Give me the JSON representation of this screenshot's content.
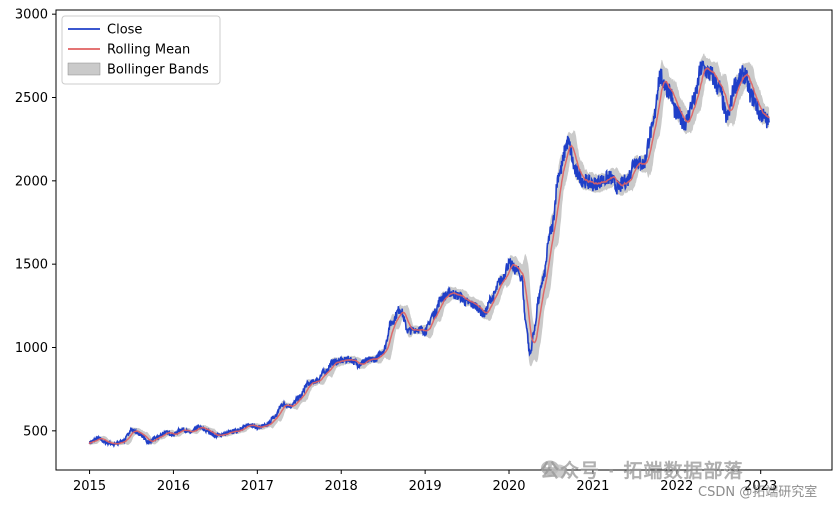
{
  "chart_data": {
    "type": "line",
    "title": "",
    "xlabel": "",
    "ylabel": "",
    "xlim": [
      2014.6,
      2023.85
    ],
    "ylim": [
      265,
      3025
    ],
    "x_ticks": [
      2015,
      2016,
      2017,
      2018,
      2019,
      2020,
      2021,
      2022,
      2023
    ],
    "x_tick_labels": [
      "2015",
      "2016",
      "2017",
      "2018",
      "2019",
      "2020",
      "2021",
      "2022",
      "2023"
    ],
    "y_ticks": [
      500,
      1000,
      1500,
      2000,
      2500,
      3000
    ],
    "y_tick_labels": [
      "500",
      "1000",
      "1500",
      "2000",
      "2500",
      "3000"
    ],
    "grid": false,
    "legend": {
      "location": "top-left",
      "entries": [
        "Close",
        "Rolling Mean",
        "Bollinger Bands"
      ]
    },
    "series": [
      {
        "name": "Close",
        "kind": "line",
        "color": "#1f3fc8"
      },
      {
        "name": "Rolling Mean",
        "kind": "line",
        "color": "#e06060"
      },
      {
        "name": "Bollinger Bands",
        "kind": "band",
        "color": "#9e9e9e"
      }
    ],
    "points": [
      [
        2015.0,
        430
      ],
      [
        2015.1,
        455
      ],
      [
        2015.2,
        430
      ],
      [
        2015.3,
        420
      ],
      [
        2015.4,
        440
      ],
      [
        2015.5,
        505
      ],
      [
        2015.6,
        480
      ],
      [
        2015.7,
        430
      ],
      [
        2015.8,
        460
      ],
      [
        2015.9,
        490
      ],
      [
        2016.0,
        480
      ],
      [
        2016.1,
        510
      ],
      [
        2016.2,
        490
      ],
      [
        2016.3,
        520
      ],
      [
        2016.4,
        500
      ],
      [
        2016.5,
        470
      ],
      [
        2016.6,
        480
      ],
      [
        2016.7,
        495
      ],
      [
        2016.8,
        510
      ],
      [
        2016.9,
        540
      ],
      [
        2017.0,
        520
      ],
      [
        2017.1,
        530
      ],
      [
        2017.2,
        580
      ],
      [
        2017.3,
        660
      ],
      [
        2017.4,
        650
      ],
      [
        2017.5,
        700
      ],
      [
        2017.6,
        780
      ],
      [
        2017.7,
        800
      ],
      [
        2017.8,
        850
      ],
      [
        2017.9,
        910
      ],
      [
        2018.0,
        920
      ],
      [
        2018.1,
        930
      ],
      [
        2018.2,
        900
      ],
      [
        2018.3,
        920
      ],
      [
        2018.4,
        930
      ],
      [
        2018.5,
        980
      ],
      [
        2018.6,
        1150
      ],
      [
        2018.7,
        1230
      ],
      [
        2018.8,
        1100
      ],
      [
        2018.9,
        1110
      ],
      [
        2019.0,
        1100
      ],
      [
        2019.1,
        1200
      ],
      [
        2019.2,
        1300
      ],
      [
        2019.3,
        1330
      ],
      [
        2019.4,
        1310
      ],
      [
        2019.5,
        1270
      ],
      [
        2019.6,
        1250
      ],
      [
        2019.7,
        1200
      ],
      [
        2019.8,
        1300
      ],
      [
        2019.9,
        1400
      ],
      [
        2020.0,
        1500
      ],
      [
        2020.1,
        1460
      ],
      [
        2020.15,
        1420
      ],
      [
        2020.2,
        1150
      ],
      [
        2020.25,
        960
      ],
      [
        2020.3,
        1100
      ],
      [
        2020.35,
        1280
      ],
      [
        2020.4,
        1400
      ],
      [
        2020.5,
        1700
      ],
      [
        2020.6,
        2050
      ],
      [
        2020.7,
        2230
      ],
      [
        2020.8,
        2050
      ],
      [
        2020.9,
        2000
      ],
      [
        2021.0,
        1980
      ],
      [
        2021.1,
        2000
      ],
      [
        2021.2,
        2020
      ],
      [
        2021.3,
        1960
      ],
      [
        2021.4,
        2000
      ],
      [
        2021.5,
        2120
      ],
      [
        2021.6,
        2100
      ],
      [
        2021.7,
        2300
      ],
      [
        2021.8,
        2620
      ],
      [
        2021.9,
        2550
      ],
      [
        2022.0,
        2400
      ],
      [
        2022.1,
        2350
      ],
      [
        2022.2,
        2480
      ],
      [
        2022.3,
        2680
      ],
      [
        2022.4,
        2640
      ],
      [
        2022.5,
        2560
      ],
      [
        2022.6,
        2380
      ],
      [
        2022.7,
        2580
      ],
      [
        2022.8,
        2640
      ],
      [
        2022.9,
        2500
      ],
      [
        2023.0,
        2400
      ],
      [
        2023.1,
        2350
      ]
    ]
  },
  "watermark": {
    "main_text": "公众号 · 拓端数据部落",
    "sub_text": "CSDN @拓端研究室",
    "icon": "wechat-icon"
  }
}
